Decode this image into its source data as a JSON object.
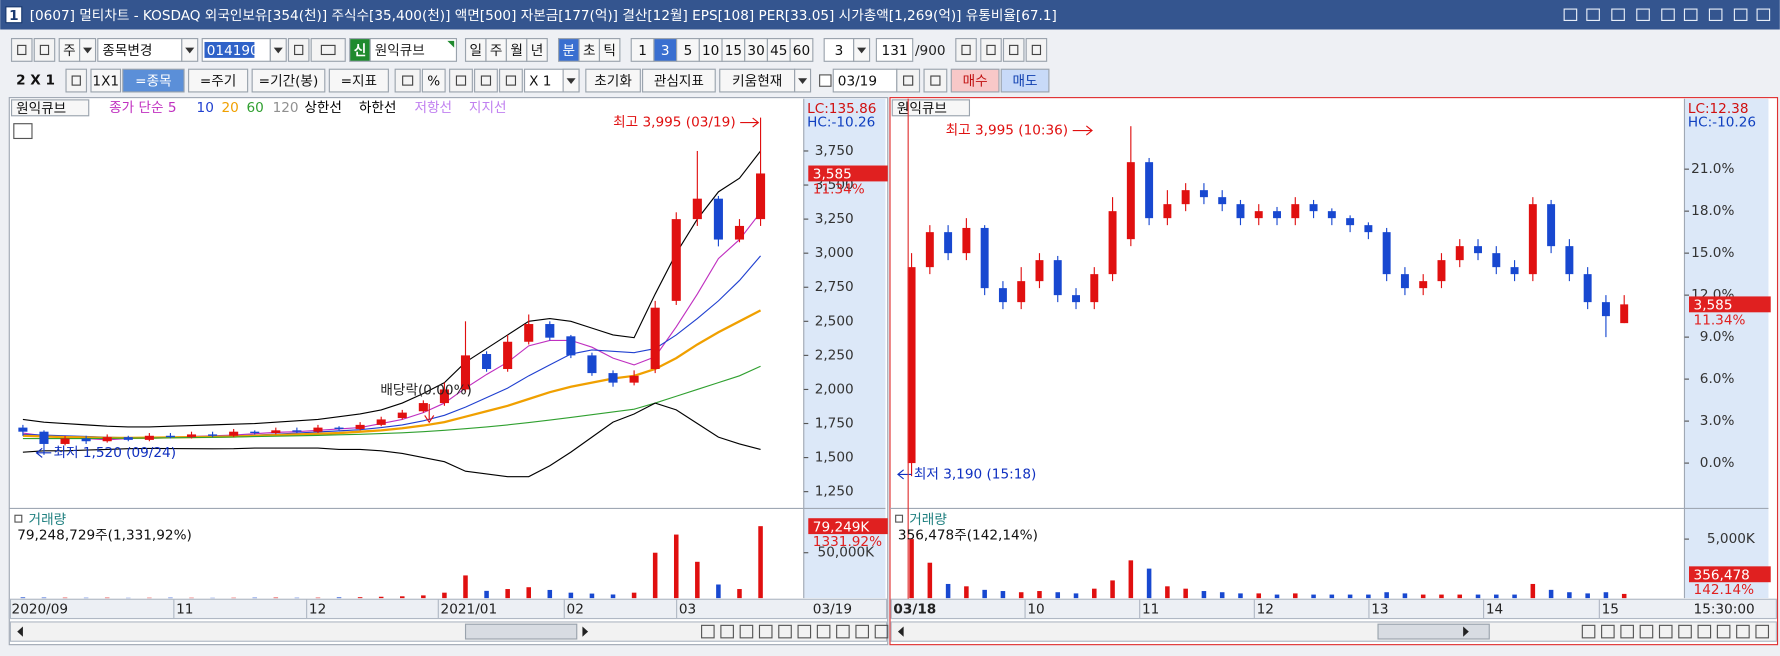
{
  "title_bar": {
    "window_no": "1",
    "title": "[0607] 멀티차트 - KOSDAQ 외국인보유[354(천)] 주식수[35,400(천)] 액면[500] 자본금[177(억)] 결산[12월] EPS[108] PER[33.05] 시가총액[1,269(억)] 유통비율[67.1]"
  },
  "toolbar1": {
    "market": "주",
    "change": "종목변경",
    "code": "014190",
    "badge": "신",
    "name": "원익큐브",
    "periods": [
      "일",
      "주",
      "월",
      "년",
      "분",
      "초",
      "틱"
    ],
    "minutes": [
      "1",
      "3",
      "5",
      "10",
      "15",
      "30",
      "45",
      "60"
    ],
    "interval": "3",
    "count": "131",
    "max": "/900"
  },
  "toolbar2": {
    "layout": "2 X 1",
    "one": "1X1",
    "buttons": [
      "=종목",
      "=주기",
      "=기간(봉)",
      "=지표"
    ],
    "percent": "%",
    "zoom": "X 1",
    "reset": "초기화",
    "fav": "관심지표",
    "kiwoom": "키움현재",
    "date": "03/19",
    "buy": "매수",
    "sell": "매도"
  },
  "charts": [
    {
      "type": "candlestick",
      "name": "원익큐브",
      "series": [
        {
          "name": "종가 단순 5",
          "color": "#c030c0",
          "values": [
            1680,
            1660,
            1650,
            1640,
            1630,
            1640,
            1645,
            1650,
            1655,
            1660,
            1665,
            1675,
            1685,
            1690,
            1700,
            1710,
            1720,
            1750,
            1780,
            1830,
            1900,
            2010,
            2110,
            2200,
            2320,
            2360,
            2360,
            2310,
            2230,
            2180,
            2240,
            2460,
            2700,
            2960,
            3100,
            3300
          ]
        },
        {
          "name": "10",
          "color": "#2040d0",
          "values": [
            1670,
            1665,
            1660,
            1655,
            1650,
            1645,
            1642,
            1645,
            1650,
            1655,
            1660,
            1665,
            1672,
            1680,
            1688,
            1696,
            1705,
            1720,
            1740,
            1770,
            1810,
            1870,
            1940,
            2010,
            2100,
            2180,
            2260,
            2290,
            2280,
            2270,
            2300,
            2400,
            2520,
            2650,
            2800,
            2980
          ]
        },
        {
          "name": "20",
          "color": "#f0a000",
          "values": [
            1660,
            1655,
            1650,
            1648,
            1645,
            1645,
            1646,
            1648,
            1650,
            1652,
            1655,
            1660,
            1665,
            1670,
            1675,
            1680,
            1690,
            1700,
            1715,
            1735,
            1760,
            1800,
            1840,
            1880,
            1930,
            1980,
            2020,
            2050,
            2080,
            2100,
            2150,
            2230,
            2330,
            2420,
            2500,
            2580
          ]
        },
        {
          "name": "60",
          "color": "#30a030",
          "values": [
            1640,
            1640,
            1640,
            1640,
            1641,
            1642,
            1643,
            1645,
            1647,
            1649,
            1651,
            1654,
            1657,
            1660,
            1663,
            1667,
            1671,
            1676,
            1682,
            1690,
            1700,
            1712,
            1725,
            1740,
            1757,
            1775,
            1795,
            1815,
            1835,
            1855,
            1900,
            1950,
            2000,
            2050,
            2100,
            2170
          ]
        },
        {
          "name": "120",
          "color": "#909090"
        },
        {
          "name": "상한선",
          "color": "#000000",
          "values": [
            1780,
            1760,
            1750,
            1740,
            1730,
            1725,
            1725,
            1730,
            1735,
            1740,
            1745,
            1750,
            1760,
            1770,
            1780,
            1800,
            1820,
            1850,
            1900,
            1970,
            2050,
            2200,
            2300,
            2400,
            2500,
            2520,
            2500,
            2450,
            2400,
            2380,
            2700,
            3000,
            3250,
            3450,
            3550,
            3750
          ]
        },
        {
          "name": "하한선",
          "color": "#000000",
          "values": [
            1540,
            1550,
            1550,
            1555,
            1560,
            1565,
            1567,
            1566,
            1565,
            1564,
            1565,
            1570,
            1570,
            1570,
            1570,
            1560,
            1560,
            1550,
            1530,
            1500,
            1470,
            1400,
            1380,
            1360,
            1360,
            1440,
            1540,
            1650,
            1760,
            1820,
            1900,
            1850,
            1750,
            1650,
            1600,
            1560
          ]
        },
        {
          "name": "저항선",
          "color": "#c080f0"
        },
        {
          "name": "지지선",
          "color": "#c080f0"
        }
      ],
      "open": [
        1720,
        1690,
        1600,
        1640,
        1620,
        1650,
        1630,
        1660,
        1650,
        1670,
        1660,
        1690,
        1680,
        1700,
        1690,
        1720,
        1710,
        1740,
        1790,
        1840,
        1900,
        2000,
        2260,
        2150,
        2350,
        2480,
        2390,
        2250,
        2120,
        2050,
        2150,
        2650,
        3250,
        3400,
        3100,
        3250
      ],
      "high": [
        1740,
        1700,
        1660,
        1660,
        1670,
        1660,
        1680,
        1680,
        1690,
        1690,
        1710,
        1700,
        1720,
        1720,
        1740,
        1730,
        1760,
        1800,
        1850,
        1920,
        2050,
        2500,
        2280,
        2400,
        2550,
        2500,
        2400,
        2270,
        2140,
        2140,
        2650,
        3300,
        3750,
        3420,
        3250,
        3995
      ],
      "low": [
        1660,
        1520,
        1590,
        1600,
        1610,
        1620,
        1620,
        1640,
        1640,
        1650,
        1650,
        1670,
        1670,
        1680,
        1680,
        1700,
        1700,
        1730,
        1780,
        1830,
        1880,
        1980,
        2130,
        2130,
        2330,
        2360,
        2230,
        2100,
        2020,
        2030,
        2120,
        2620,
        3200,
        3050,
        3080,
        3200
      ],
      "close": [
        1690,
        1600,
        1640,
        1620,
        1650,
        1630,
        1660,
        1650,
        1670,
        1660,
        1690,
        1680,
        1700,
        1690,
        1720,
        1710,
        1740,
        1780,
        1830,
        1900,
        2000,
        2250,
        2150,
        2350,
        2480,
        2380,
        2250,
        2120,
        2050,
        2100,
        2600,
        3250,
        3400,
        3100,
        3200,
        3585
      ],
      "ylim": [
        1135,
        4125
      ],
      "yticks": [
        {
          "value": 1250,
          "label": "1,250"
        },
        {
          "value": 1500,
          "label": "1,500"
        },
        {
          "value": 1750,
          "label": "1,750"
        },
        {
          "value": 2000,
          "label": "2,000"
        },
        {
          "value": 2250,
          "label": "2,250"
        },
        {
          "value": 2500,
          "label": "2,500"
        },
        {
          "value": 2750,
          "label": "2,750"
        },
        {
          "value": 3000,
          "label": "3,000"
        },
        {
          "value": 3250,
          "label": "3,250"
        },
        {
          "value": 3500,
          "label": "3,500"
        },
        {
          "value": 3750,
          "label": "3,750"
        }
      ],
      "lc": "LC:135.86",
      "hc": "HC:-10.26",
      "last_price": {
        "value": 3585,
        "label": "3,585"
      },
      "last_change": "11.34%",
      "high_note": "최고 3,995 (03/19)",
      "low_note": "최저 1,520 (09/24)",
      "event": "배당락(0.00%)",
      "xlabels": [
        "2020/09",
        "11",
        "12",
        "2021/01",
        "02",
        "03"
      ],
      "last_x": "03/19",
      "volume": {
        "title": "거래량",
        "summary": "79,248,729주(1,331,92%)",
        "values": [
          800000,
          600000,
          500000,
          400000,
          500000,
          300000,
          400000,
          500000,
          400000,
          300000,
          400000,
          500000,
          600000,
          400000,
          500000,
          800000,
          1000000,
          1500000,
          2000000,
          3000000,
          6000000,
          25000000,
          8000000,
          10000000,
          12000000,
          9000000,
          6000000,
          5000000,
          4000000,
          6000000,
          50000000,
          70000000,
          40000000,
          15000000,
          10000000,
          79248729
        ],
        "ylim": [
          0,
          93750000
        ],
        "yticks": [
          {
            "value": 50000000,
            "label": "50,000K"
          }
        ],
        "last_label": "79,249K",
        "last_ratio": "1331.92%"
      }
    },
    {
      "type": "candlestick",
      "name": "원익큐브",
      "open": [
        0.0,
        14.0,
        16.5,
        15.0,
        16.8,
        12.5,
        11.5,
        13.0,
        14.5,
        12.0,
        11.5,
        13.5,
        16.0,
        21.5,
        17.5,
        18.5,
        19.5,
        19.0,
        18.5,
        17.5,
        18.0,
        17.5,
        18.5,
        18.0,
        17.5,
        17.0,
        16.5,
        13.5,
        12.5,
        13.0,
        14.5,
        15.5,
        15.0,
        14.0,
        13.5,
        18.5,
        15.5,
        13.5,
        11.5,
        10.0
      ],
      "high": [
        15.0,
        17.0,
        17.0,
        17.5,
        17.0,
        13.0,
        14.0,
        15.0,
        14.8,
        12.5,
        14.0,
        19.0,
        24.07,
        21.8,
        19.5,
        20.0,
        20.0,
        19.5,
        18.8,
        18.5,
        18.3,
        19.0,
        18.8,
        18.2,
        17.7,
        17.2,
        16.8,
        14.0,
        13.5,
        15.0,
        16.0,
        16.0,
        15.5,
        14.5,
        19.0,
        18.8,
        16.0,
        14.0,
        12.0,
        12.0
      ],
      "low": [
        -0.93,
        13.5,
        14.5,
        14.5,
        12.0,
        11.0,
        11.0,
        12.5,
        11.5,
        11.0,
        11.0,
        13.0,
        15.5,
        17.0,
        17.0,
        18.0,
        18.5,
        18.0,
        17.0,
        17.0,
        17.0,
        17.0,
        17.5,
        17.0,
        16.5,
        16.0,
        13.0,
        12.0,
        12.0,
        12.5,
        14.0,
        14.5,
        13.5,
        13.0,
        13.0,
        15.0,
        13.0,
        11.0,
        9.0,
        10.0
      ],
      "close": [
        14.0,
        16.5,
        15.0,
        16.8,
        12.5,
        11.5,
        13.0,
        14.5,
        12.0,
        11.5,
        13.5,
        18.0,
        21.5,
        17.5,
        18.5,
        19.5,
        19.0,
        18.5,
        17.5,
        18.0,
        17.5,
        18.5,
        18.0,
        17.5,
        17.0,
        16.5,
        13.5,
        12.5,
        13.0,
        14.5,
        15.5,
        15.0,
        14.0,
        13.5,
        18.5,
        15.5,
        13.5,
        11.5,
        10.5,
        11.34
      ],
      "ylim": [
        -3.16,
        25.95
      ],
      "yticks": [
        {
          "value": 0,
          "label": "0.0%"
        },
        {
          "value": 3,
          "label": "3.0%"
        },
        {
          "value": 6,
          "label": "6.0%"
        },
        {
          "value": 9,
          "label": "9.0%"
        },
        {
          "value": 12,
          "label": "12.0%"
        },
        {
          "value": 15,
          "label": "15.0%"
        },
        {
          "value": 18,
          "label": "18.0%"
        },
        {
          "value": 21,
          "label": "21.0%"
        }
      ],
      "lc": "LC:12.38",
      "hc": "HC:-10.26",
      "last_price": "3,585",
      "last_change": {
        "value": 11.34,
        "label": "11.34%"
      },
      "high_note": "최고 3,995 (10:36)",
      "low_note": "최저 3,190 (15:18)",
      "xlabels": [
        "03/18",
        "10",
        "11",
        "12",
        "13",
        "14",
        "15"
      ],
      "last_x": "15:30:00",
      "volume": {
        "title": "거래량",
        "summary": "356,478주(142,14%)",
        "values": [
          5000000,
          3000000,
          1200000,
          1000000,
          700000,
          600000,
          500000,
          600000,
          500000,
          400000,
          800000,
          1500000,
          3200000,
          2500000,
          1000000,
          800000,
          600000,
          500000,
          400000,
          400000,
          300000,
          400000,
          300000,
          300000,
          300000,
          300000,
          500000,
          400000,
          300000,
          300000,
          300000,
          300000,
          300000,
          300000,
          1200000,
          700000,
          500000,
          400000,
          500000,
          356478
        ],
        "ylim": [
          0,
          7212000
        ],
        "yticks": [
          {
            "value": 5000000,
            "label": "5,000K"
          }
        ],
        "last_label": "356,478",
        "last_ratio": "142.14%"
      }
    }
  ]
}
